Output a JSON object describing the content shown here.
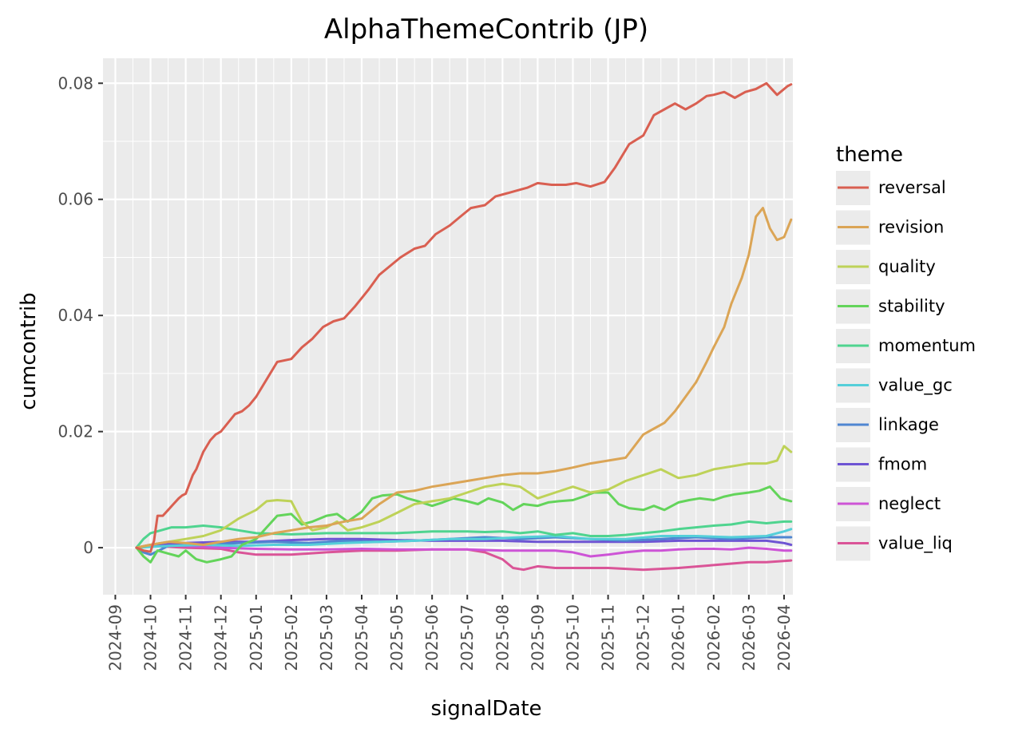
{
  "chart_data": {
    "type": "line",
    "title": "AlphaThemeContrib (JP)",
    "xlabel": "signalDate",
    "ylabel": "cumcontrib",
    "x_tick_labels": [
      "2024-09",
      "2024-10",
      "2024-11",
      "2024-12",
      "2025-01",
      "2025-02",
      "2025-03",
      "2025-04",
      "2025-05",
      "2025-06",
      "2025-07",
      "2025-08",
      "2025-09",
      "2025-10",
      "2025-11",
      "2025-12",
      "2026-01",
      "2026-02",
      "2026-03",
      "2026-04"
    ],
    "y_tick_labels": [
      "0",
      "0.02",
      "0.04",
      "0.06",
      "0.08"
    ],
    "y_ticks": [
      0,
      0.02,
      0.04,
      0.06,
      0.08
    ],
    "ylim": [
      -0.0081,
      0.0843
    ],
    "x_month_index_range": [
      -0.35,
      19.25
    ],
    "x_unit_note": "x values are months since 2024-09-01",
    "grid": true,
    "legend_title": "theme",
    "legend_position": "right",
    "series": [
      {
        "name": "reversal",
        "color": "#d95f51",
        "x": [
          0.6,
          0.8,
          1.0,
          1.1,
          1.2,
          1.35,
          1.5,
          1.65,
          1.8,
          1.9,
          2.0,
          2.2,
          2.3,
          2.5,
          2.7,
          2.85,
          3.0,
          3.2,
          3.4,
          3.6,
          3.8,
          4.0,
          4.3,
          4.6,
          5.0,
          5.3,
          5.6,
          5.9,
          6.2,
          6.5,
          6.8,
          7.0,
          7.2,
          7.5,
          7.8,
          8.1,
          8.5,
          8.8,
          9.1,
          9.5,
          9.8,
          10.1,
          10.5,
          10.8,
          11.1,
          11.4,
          11.7,
          12.0,
          12.4,
          12.8,
          13.1,
          13.5,
          13.9,
          14.2,
          14.6,
          15.0,
          15.3,
          15.6,
          15.9,
          16.2,
          16.5,
          16.8,
          17.0,
          17.3,
          17.6,
          17.9,
          18.2,
          18.5,
          18.8,
          19.1,
          19.2
        ],
        "values": [
          0,
          -0.0005,
          -0.0007,
          0.0012,
          0.0055,
          0.0055,
          0.0065,
          0.0075,
          0.0085,
          0.009,
          0.0093,
          0.0125,
          0.0135,
          0.0165,
          0.0185,
          0.0195,
          0.02,
          0.0215,
          0.023,
          0.0235,
          0.0245,
          0.026,
          0.029,
          0.032,
          0.0325,
          0.0345,
          0.036,
          0.038,
          0.039,
          0.0395,
          0.0415,
          0.043,
          0.0445,
          0.047,
          0.0485,
          0.05,
          0.0515,
          0.052,
          0.054,
          0.0555,
          0.057,
          0.0585,
          0.059,
          0.0605,
          0.061,
          0.0615,
          0.062,
          0.0628,
          0.0625,
          0.0625,
          0.0628,
          0.0622,
          0.063,
          0.0655,
          0.0695,
          0.071,
          0.0745,
          0.0755,
          0.0765,
          0.0755,
          0.0765,
          0.0778,
          0.078,
          0.0785,
          0.0775,
          0.0785,
          0.079,
          0.08,
          0.078,
          0.0795,
          0.0798
        ]
      },
      {
        "name": "revision",
        "color": "#dba556",
        "x": [
          0.6,
          1.0,
          1.5,
          2.0,
          2.5,
          3.0,
          3.5,
          4.0,
          4.5,
          5.0,
          5.5,
          6.0,
          6.5,
          7.0,
          7.5,
          8.0,
          8.5,
          9.0,
          9.5,
          10.0,
          10.5,
          11.0,
          11.5,
          12.0,
          12.5,
          13.0,
          13.5,
          14.0,
          14.5,
          15.0,
          15.3,
          15.6,
          15.9,
          16.2,
          16.5,
          16.8,
          17.0,
          17.3,
          17.5,
          17.8,
          18.0,
          18.2,
          18.4,
          18.6,
          18.8,
          19.0,
          19.2
        ],
        "values": [
          0,
          0.0005,
          0.001,
          0.0008,
          0.0005,
          0.001,
          0.0015,
          0.0018,
          0.0025,
          0.003,
          0.0035,
          0.0038,
          0.0045,
          0.005,
          0.0075,
          0.0095,
          0.0098,
          0.0105,
          0.011,
          0.0115,
          0.012,
          0.0125,
          0.0128,
          0.0128,
          0.0132,
          0.0138,
          0.0145,
          0.015,
          0.0155,
          0.0195,
          0.0205,
          0.0215,
          0.0235,
          0.026,
          0.0285,
          0.032,
          0.0345,
          0.038,
          0.042,
          0.0465,
          0.0505,
          0.057,
          0.0585,
          0.055,
          0.053,
          0.0535,
          0.0565
        ]
      },
      {
        "name": "quality",
        "color": "#bed258",
        "x": [
          0.6,
          1.0,
          1.5,
          2.0,
          2.5,
          3.0,
          3.5,
          4.0,
          4.3,
          4.6,
          5.0,
          5.3,
          5.6,
          6.0,
          6.3,
          6.6,
          7.0,
          7.5,
          8.0,
          8.5,
          9.0,
          9.5,
          10.0,
          10.5,
          11.0,
          11.5,
          12.0,
          12.5,
          13.0,
          13.5,
          14.0,
          14.5,
          15.0,
          15.5,
          16.0,
          16.5,
          17.0,
          17.5,
          18.0,
          18.5,
          18.8,
          19.0,
          19.2
        ],
        "values": [
          0,
          0.0005,
          0.001,
          0.0015,
          0.002,
          0.003,
          0.005,
          0.0065,
          0.008,
          0.0082,
          0.008,
          0.0045,
          0.003,
          0.0035,
          0.0045,
          0.003,
          0.0035,
          0.0045,
          0.006,
          0.0075,
          0.008,
          0.0085,
          0.0095,
          0.0105,
          0.011,
          0.0105,
          0.0085,
          0.0095,
          0.0105,
          0.0095,
          0.01,
          0.0115,
          0.0125,
          0.0135,
          0.012,
          0.0125,
          0.0135,
          0.014,
          0.0145,
          0.0145,
          0.015,
          0.0175,
          0.0165
        ]
      },
      {
        "name": "stability",
        "color": "#63d45a",
        "x": [
          0.6,
          0.8,
          1.0,
          1.2,
          1.5,
          1.8,
          2.0,
          2.3,
          2.6,
          3.0,
          3.3,
          3.6,
          4.0,
          4.3,
          4.6,
          5.0,
          5.3,
          5.6,
          6.0,
          6.3,
          6.6,
          7.0,
          7.3,
          7.6,
          8.0,
          8.3,
          8.6,
          9.0,
          9.3,
          9.6,
          10.0,
          10.3,
          10.6,
          11.0,
          11.3,
          11.6,
          12.0,
          12.3,
          12.6,
          13.0,
          13.3,
          13.6,
          14.0,
          14.3,
          14.6,
          15.0,
          15.3,
          15.6,
          16.0,
          16.3,
          16.6,
          17.0,
          17.3,
          17.6,
          18.0,
          18.3,
          18.6,
          18.9,
          19.2
        ],
        "values": [
          0,
          -0.0015,
          -0.0025,
          -0.0005,
          -0.001,
          -0.0015,
          -0.0005,
          -0.002,
          -0.0025,
          -0.002,
          -0.0015,
          0.0005,
          0.0015,
          0.0035,
          0.0055,
          0.0058,
          0.004,
          0.0045,
          0.0055,
          0.0058,
          0.0045,
          0.0062,
          0.0085,
          0.009,
          0.0092,
          0.0085,
          0.008,
          0.0072,
          0.0078,
          0.0085,
          0.008,
          0.0075,
          0.0085,
          0.0078,
          0.0065,
          0.0075,
          0.0072,
          0.0078,
          0.008,
          0.0082,
          0.0088,
          0.0095,
          0.0095,
          0.0075,
          0.0068,
          0.0065,
          0.0072,
          0.0065,
          0.0078,
          0.0082,
          0.0085,
          0.0082,
          0.0088,
          0.0092,
          0.0095,
          0.0098,
          0.0105,
          0.0085,
          0.008
        ]
      },
      {
        "name": "momentum",
        "color": "#4fd48f",
        "x": [
          0.6,
          0.8,
          1.0,
          1.3,
          1.6,
          2.0,
          2.5,
          3.0,
          3.5,
          4.0,
          5.0,
          6.0,
          7.0,
          8.0,
          9.0,
          10.0,
          10.5,
          11.0,
          11.5,
          12.0,
          12.5,
          13.0,
          13.5,
          14.0,
          14.5,
          15.0,
          15.5,
          16.0,
          16.5,
          17.0,
          17.5,
          18.0,
          18.5,
          19.0,
          19.2
        ],
        "values": [
          0,
          0.0015,
          0.0025,
          0.003,
          0.0035,
          0.0035,
          0.0038,
          0.0035,
          0.003,
          0.0025,
          0.0023,
          0.0025,
          0.0025,
          0.0025,
          0.0028,
          0.0028,
          0.0027,
          0.0028,
          0.0025,
          0.0028,
          0.0022,
          0.0025,
          0.002,
          0.002,
          0.0022,
          0.0025,
          0.0028,
          0.0032,
          0.0035,
          0.0038,
          0.004,
          0.0045,
          0.0042,
          0.0045,
          0.0045
        ]
      },
      {
        "name": "value_gc",
        "color": "#55cfd9",
        "x": [
          0.6,
          1.5,
          2.5,
          3.5,
          4.5,
          5.5,
          6.5,
          7.5,
          8.5,
          9.5,
          10.5,
          11.5,
          12.5,
          13.5,
          14.5,
          15.5,
          16.5,
          17.5,
          18.5,
          19.0,
          19.2
        ],
        "values": [
          0,
          0.0003,
          0.0005,
          0.0003,
          0.0005,
          0.0005,
          0.0008,
          0.001,
          0.0012,
          0.0015,
          0.0015,
          0.0018,
          0.002,
          0.0015,
          0.0015,
          0.002,
          0.002,
          0.0018,
          0.002,
          0.0028,
          0.0032
        ]
      },
      {
        "name": "linkage",
        "color": "#4f86d1",
        "x": [
          0.6,
          0.8,
          1.0,
          1.5,
          2.5,
          3.5,
          4.5,
          5.5,
          6.5,
          7.5,
          8.5,
          9.5,
          10.5,
          11.5,
          12.5,
          13.5,
          14.5,
          15.5,
          16.5,
          17.5,
          18.5,
          19.2
        ],
        "values": [
          0,
          -0.0008,
          -0.0012,
          0.0003,
          0.0005,
          0.0008,
          0.001,
          0.0008,
          0.0012,
          0.001,
          0.0012,
          0.0015,
          0.0018,
          0.0015,
          0.0018,
          0.0015,
          0.0012,
          0.0015,
          0.0018,
          0.0015,
          0.0018,
          0.0018
        ]
      },
      {
        "name": "fmom",
        "color": "#6e54d3",
        "x": [
          0.6,
          1.0,
          2.0,
          3.0,
          4.0,
          5.0,
          6.0,
          7.0,
          8.0,
          9.0,
          10.0,
          11.0,
          12.0,
          13.0,
          14.0,
          15.0,
          16.0,
          17.0,
          18.0,
          18.5,
          19.0,
          19.2
        ],
        "values": [
          0,
          0.0005,
          0.0008,
          0.001,
          0.001,
          0.0013,
          0.0015,
          0.0015,
          0.0013,
          0.0012,
          0.0012,
          0.0012,
          0.001,
          0.001,
          0.001,
          0.001,
          0.0012,
          0.0012,
          0.0012,
          0.0012,
          0.0008,
          0.0005
        ]
      },
      {
        "name": "neglect",
        "color": "#cd54d6",
        "x": [
          0.6,
          1.0,
          2.0,
          3.0,
          4.0,
          5.0,
          6.0,
          7.0,
          8.0,
          9.0,
          10.0,
          11.0,
          12.0,
          12.5,
          13.0,
          13.5,
          14.0,
          14.5,
          15.0,
          15.5,
          16.0,
          16.5,
          17.0,
          17.5,
          18.0,
          18.5,
          19.0,
          19.2
        ],
        "values": [
          0,
          0.0005,
          0.0003,
          0,
          -0.0002,
          -0.0003,
          -0.0003,
          -0.0002,
          -0.0003,
          -0.0003,
          -0.0003,
          -0.0005,
          -0.0005,
          -0.0005,
          -0.0008,
          -0.0015,
          -0.0012,
          -0.0008,
          -0.0005,
          -0.0005,
          -0.0003,
          -0.0002,
          -0.0002,
          -0.0003,
          0,
          -0.0002,
          -0.0005,
          -0.0005
        ]
      },
      {
        "name": "value_liq",
        "color": "#da5497",
        "x": [
          0.6,
          1.0,
          2.0,
          3.0,
          3.5,
          4.0,
          5.0,
          6.0,
          7.0,
          8.0,
          9.0,
          10.0,
          10.5,
          11.0,
          11.3,
          11.6,
          12.0,
          12.5,
          13.0,
          14.0,
          15.0,
          16.0,
          17.0,
          18.0,
          18.5,
          19.2
        ],
        "values": [
          0,
          0.0003,
          0,
          -0.0002,
          -0.0008,
          -0.0012,
          -0.0012,
          -0.0008,
          -0.0005,
          -0.0005,
          -0.0003,
          -0.0003,
          -0.0008,
          -0.002,
          -0.0035,
          -0.0038,
          -0.0032,
          -0.0035,
          -0.0035,
          -0.0035,
          -0.0038,
          -0.0035,
          -0.003,
          -0.0025,
          -0.0025,
          -0.0022
        ]
      }
    ]
  }
}
